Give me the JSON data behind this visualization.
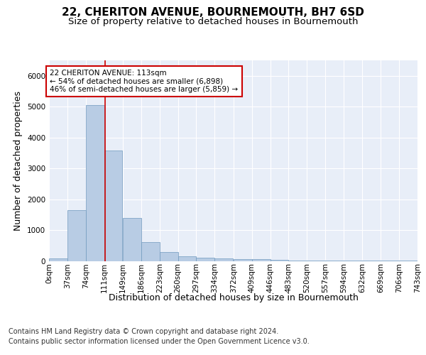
{
  "title": "22, CHERITON AVENUE, BOURNEMOUTH, BH7 6SD",
  "subtitle": "Size of property relative to detached houses in Bournemouth",
  "xlabel": "Distribution of detached houses by size in Bournemouth",
  "ylabel": "Number of detached properties",
  "bar_color": "#b8cce4",
  "bar_edge_color": "#7099be",
  "background_color": "#e8eef8",
  "grid_color": "#ffffff",
  "property_line_x": 113,
  "bin_edges": [
    0,
    37,
    74,
    111,
    149,
    186,
    223,
    260,
    297,
    334,
    372,
    409,
    446,
    483,
    520,
    557,
    594,
    632,
    669,
    706,
    743
  ],
  "bar_heights": [
    75,
    1640,
    5060,
    3580,
    1390,
    610,
    290,
    145,
    110,
    75,
    60,
    55,
    25,
    10,
    8,
    5,
    3,
    2,
    1,
    1
  ],
  "tick_labels": [
    "0sqm",
    "37sqm",
    "74sqm",
    "111sqm",
    "149sqm",
    "186sqm",
    "223sqm",
    "260sqm",
    "297sqm",
    "334sqm",
    "372sqm",
    "409sqm",
    "446sqm",
    "483sqm",
    "520sqm",
    "557sqm",
    "594sqm",
    "632sqm",
    "669sqm",
    "706sqm",
    "743sqm"
  ],
  "annotation_title": "22 CHERITON AVENUE: 113sqm",
  "annotation_line1": "← 54% of detached houses are smaller (6,898)",
  "annotation_line2": "46% of semi-detached houses are larger (5,859) →",
  "annotation_box_color": "#ffffff",
  "annotation_box_edge": "#cc0000",
  "footer_line1": "Contains HM Land Registry data © Crown copyright and database right 2024.",
  "footer_line2": "Contains public sector information licensed under the Open Government Licence v3.0.",
  "ylim": [
    0,
    6500
  ],
  "title_fontsize": 11,
  "subtitle_fontsize": 9.5,
  "axis_label_fontsize": 9,
  "tick_fontsize": 7.5,
  "footer_fontsize": 7
}
